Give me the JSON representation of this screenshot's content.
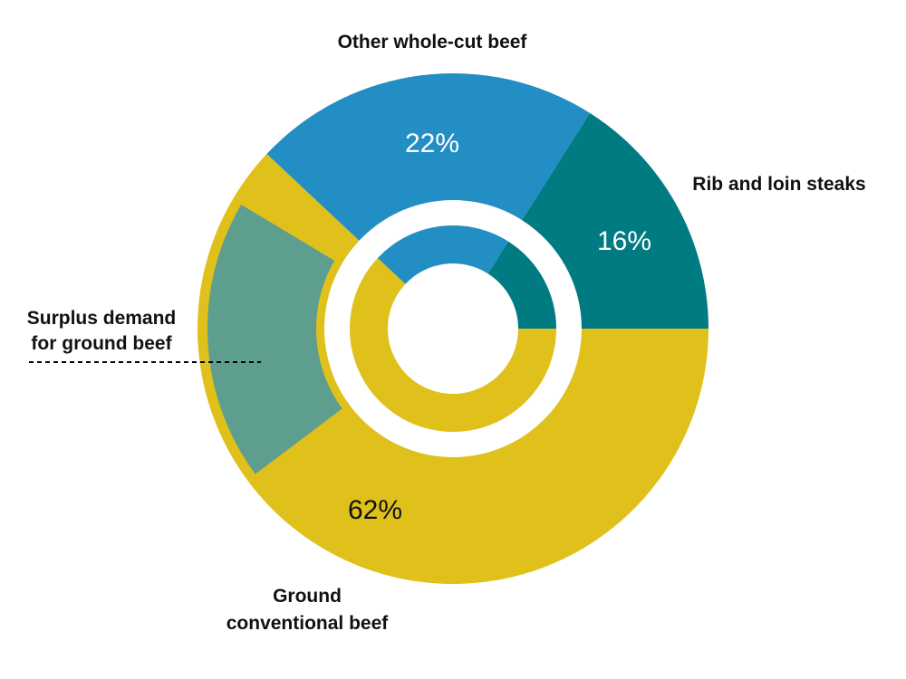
{
  "chart_data": {
    "type": "pie",
    "categories": [
      "Ground conventional beef",
      "Other whole-cut beef",
      "Rib and loin steaks"
    ],
    "values": [
      62,
      22,
      16
    ],
    "value_labels": [
      "62%",
      "22%",
      "16%"
    ],
    "label_lines": {
      "ground": [
        "Ground",
        "conventional beef"
      ],
      "whole": [
        "Other whole-cut beef"
      ],
      "rib": [
        "Rib and loin steaks"
      ],
      "surplus": [
        "Surplus demand",
        "for ground beef"
      ]
    },
    "highlight": {
      "name": "Surplus demand for ground beef",
      "within": "Other whole-cut beef"
    },
    "colors": {
      "ground": "#e0c01a",
      "whole": "#238ec4",
      "rib": "#007b82",
      "surplus_fill": "#5e9e8f",
      "surplus_outline": "#e0c01a"
    }
  }
}
